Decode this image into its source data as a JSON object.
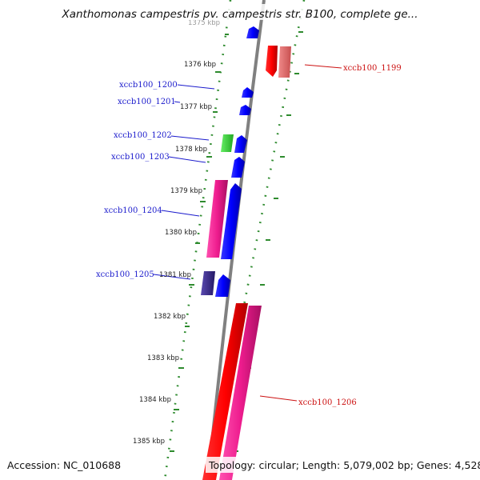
{
  "title": "Xanthomonas campestris pv. campestris str. B100, complete ge...",
  "footer": {
    "accession": "Accession: NC_010688",
    "summary": "Topology: circular; Length: 5,079,002 bp; Genes: 4,528"
  },
  "ticks": [
    "1375 kbp",
    "1376 kbp",
    "1377 kbp",
    "1378 kbp",
    "1379 kbp",
    "1380 kbp",
    "1381 kbp",
    "1382 kbp",
    "1383 kbp",
    "1384 kbp",
    "1385 kbp"
  ],
  "gene_labels": {
    "g1199": "xccb100_1199",
    "g1200": "xccb100_1200",
    "g1201": "xccb100_1201",
    "g1202": "xccb100_1202",
    "g1203": "xccb100_1203",
    "g1204": "xccb100_1204",
    "g1205": "xccb100_1205",
    "g1206": "xccb100_1206"
  },
  "colors": {
    "cds": "#0000ff",
    "gene_red": "#ff0000",
    "gene_salmon": "#e06a6a",
    "gene_pink": "#ee1c8e",
    "gene_green": "#33cc33",
    "gene_purple": "#3a2a88",
    "backbone": "#808080",
    "ruler_dots": "#2e8b2e",
    "label_blue": "#1a1acc",
    "label_red": "#cc1111"
  }
}
